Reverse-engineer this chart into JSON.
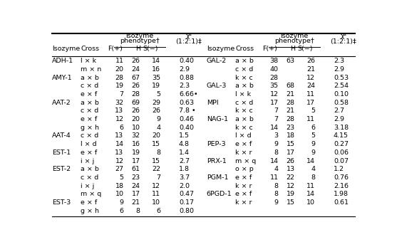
{
  "rows_left": [
    [
      "ADH-1",
      "l × k",
      "11",
      "26",
      "14",
      "0.40"
    ],
    [
      "",
      "m × n",
      "20",
      "24",
      "16",
      "2.9"
    ],
    [
      "AMY-1",
      "a × b",
      "28",
      "67",
      "35",
      "0.88"
    ],
    [
      "",
      "c × d",
      "19",
      "26",
      "19",
      "2.3"
    ],
    [
      "",
      "e × f",
      "7",
      "28",
      "5",
      "6.66•"
    ],
    [
      "AAT-2",
      "a × b",
      "32",
      "69",
      "29",
      "0.63"
    ],
    [
      "",
      "c × d",
      "13",
      "26",
      "26",
      "7.8 •"
    ],
    [
      "",
      "e × f",
      "12",
      "20",
      "9",
      "0.46"
    ],
    [
      "",
      "g × h",
      "6",
      "10",
      "4",
      "0.40"
    ],
    [
      "AAT-4",
      "c × d",
      "13",
      "32",
      "20",
      "1.5"
    ],
    [
      "",
      "l × d",
      "14",
      "16",
      "15",
      "4.8"
    ],
    [
      "EST-1",
      "e × f",
      "13",
      "19",
      "8",
      "1.4"
    ],
    [
      "",
      "i × j",
      "12",
      "17",
      "15",
      "2.7"
    ],
    [
      "EST-2",
      "a × b",
      "27",
      "61",
      "22",
      "1.8"
    ],
    [
      "",
      "c × d",
      "5",
      "23",
      "7",
      "3.7"
    ],
    [
      "",
      "i × j",
      "18",
      "24",
      "12",
      "2.0"
    ],
    [
      "",
      "m × q",
      "10",
      "17",
      "11",
      "0.47"
    ],
    [
      "EST-3",
      "e × f",
      "9",
      "21",
      "10",
      "0.17"
    ],
    [
      "",
      "g × h",
      "6",
      "8",
      "6",
      "0.80"
    ]
  ],
  "rows_right": [
    [
      "GAL-2",
      "a × b",
      "38",
      "63",
      "26",
      "2.3"
    ],
    [
      "",
      "c × d",
      "40",
      "",
      "21",
      "2.9"
    ],
    [
      "",
      "k × c",
      "28",
      "",
      "12",
      "0.53"
    ],
    [
      "GAL-3",
      "a × b",
      "35",
      "68",
      "24",
      "2.54"
    ],
    [
      "",
      "l × k",
      "12",
      "21",
      "11",
      "0.10"
    ],
    [
      "MPI",
      "c × d",
      "17",
      "28",
      "17",
      "0.58"
    ],
    [
      "",
      "k × c",
      "7",
      "21",
      "5",
      "2.7"
    ],
    [
      "NAG-1",
      "a × b",
      "7",
      "28",
      "11",
      "2.9"
    ],
    [
      "",
      "k × c",
      "14",
      "23",
      "6",
      "3.18"
    ],
    [
      "",
      "l × d",
      "3",
      "18",
      "5",
      "4.15"
    ],
    [
      "PEP-3",
      "e × f",
      "9",
      "15",
      "9",
      "0.27"
    ],
    [
      "",
      "k × r",
      "8",
      "17",
      "9",
      "0.06"
    ],
    [
      "PRX-1",
      "m × q",
      "14",
      "26",
      "14",
      "0.07"
    ],
    [
      "",
      "o × p",
      "4",
      "13",
      "4",
      "1.2"
    ],
    [
      "PGM-1",
      "e × f",
      "11",
      "22",
      "8",
      "0.76"
    ],
    [
      "",
      "k × r",
      "8",
      "12",
      "11",
      "2.16"
    ],
    [
      "6PGD-1",
      "e × f",
      "8",
      "19",
      "14",
      "1.98"
    ],
    [
      "",
      "k × r",
      "9",
      "15",
      "10",
      "0.61"
    ],
    [
      "",
      "",
      "",
      "",
      "",
      ""
    ]
  ],
  "bg_color": "#ffffff",
  "text_color": "#000000",
  "line_color": "#000000",
  "fontsize": 6.8,
  "header_fontsize": 6.8
}
